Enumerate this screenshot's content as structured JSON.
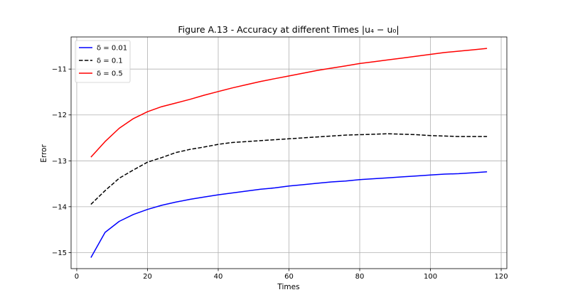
{
  "chart_data": {
    "type": "line",
    "title": "Figure A.13 - Accuracy at different Times |u₄ − u₀|",
    "xlabel": "Times",
    "ylabel": "Error",
    "xlim": [
      -1.6,
      121.6
    ],
    "ylim": [
      -15.35,
      -10.3
    ],
    "xticks": [
      0,
      20,
      40,
      60,
      80,
      100,
      120
    ],
    "yticks": [
      -15,
      -14,
      -13,
      -12,
      -11
    ],
    "grid": true,
    "legend_position": "upper-left",
    "series": [
      {
        "name": "δ = 0.01",
        "color": "#0000ff",
        "dash": "solid",
        "x": [
          4,
          8,
          12,
          16,
          20,
          24,
          28,
          32,
          36,
          40,
          44,
          48,
          52,
          56,
          60,
          64,
          68,
          72,
          76,
          80,
          84,
          88,
          92,
          96,
          100,
          104,
          108,
          112,
          116
        ],
        "y": [
          -15.11,
          -14.56,
          -14.32,
          -14.17,
          -14.06,
          -13.97,
          -13.9,
          -13.84,
          -13.79,
          -13.74,
          -13.7,
          -13.66,
          -13.62,
          -13.59,
          -13.55,
          -13.52,
          -13.49,
          -13.46,
          -13.44,
          -13.41,
          -13.39,
          -13.37,
          -13.35,
          -13.33,
          -13.31,
          -13.29,
          -13.28,
          -13.26,
          -13.24
        ]
      },
      {
        "name": "δ = 0.1",
        "color": "#000000",
        "dash": "dashed",
        "x": [
          4,
          8,
          12,
          16,
          20,
          24,
          28,
          32,
          36,
          40,
          44,
          48,
          52,
          56,
          60,
          64,
          68,
          72,
          76,
          80,
          84,
          88,
          92,
          96,
          100,
          104,
          108,
          112,
          116
        ],
        "y": [
          -13.95,
          -13.65,
          -13.38,
          -13.2,
          -13.03,
          -12.93,
          -12.82,
          -12.75,
          -12.7,
          -12.64,
          -12.6,
          -12.58,
          -12.56,
          -12.54,
          -12.52,
          -12.5,
          -12.48,
          -12.46,
          -12.44,
          -12.43,
          -12.42,
          -12.41,
          -12.42,
          -12.43,
          -12.45,
          -12.46,
          -12.47,
          -12.47,
          -12.47
        ]
      },
      {
        "name": "δ = 0.5",
        "color": "#ff0000",
        "dash": "solid",
        "x": [
          4,
          8,
          12,
          16,
          20,
          24,
          28,
          32,
          36,
          40,
          44,
          48,
          52,
          56,
          60,
          64,
          68,
          72,
          76,
          80,
          84,
          88,
          92,
          96,
          100,
          104,
          108,
          112,
          116
        ],
        "y": [
          -12.92,
          -12.58,
          -12.29,
          -12.08,
          -11.93,
          -11.82,
          -11.74,
          -11.66,
          -11.57,
          -11.49,
          -11.41,
          -11.34,
          -11.27,
          -11.21,
          -11.15,
          -11.09,
          -11.03,
          -10.98,
          -10.93,
          -10.88,
          -10.84,
          -10.8,
          -10.76,
          -10.72,
          -10.68,
          -10.64,
          -10.61,
          -10.58,
          -10.55
        ]
      }
    ]
  }
}
